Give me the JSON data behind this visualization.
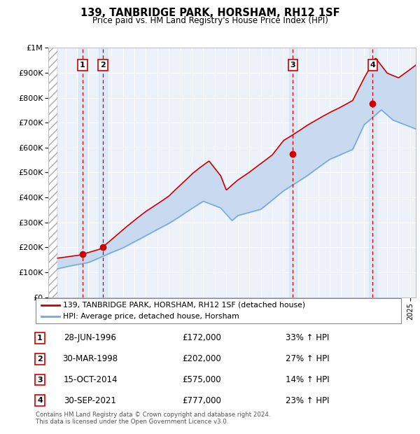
{
  "title": "139, TANBRIDGE PARK, HORSHAM, RH12 1SF",
  "subtitle": "Price paid vs. HM Land Registry's House Price Index (HPI)",
  "legend_line1": "139, TANBRIDGE PARK, HORSHAM, RH12 1SF (detached house)",
  "legend_line2": "HPI: Average price, detached house, Horsham",
  "footer1": "Contains HM Land Registry data © Crown copyright and database right 2024.",
  "footer2": "This data is licensed under the Open Government Licence v3.0.",
  "sales": [
    {
      "num": 1,
      "year": 1996.49,
      "price": 172000,
      "label": "28-JUN-1996",
      "pct": "33%",
      "dir": "↑"
    },
    {
      "num": 2,
      "year": 1998.25,
      "price": 202000,
      "label": "30-MAR-1998",
      "pct": "27%",
      "dir": "↑"
    },
    {
      "num": 3,
      "year": 2014.79,
      "price": 575000,
      "label": "15-OCT-2014",
      "pct": "14%",
      "dir": "↑"
    },
    {
      "num": 4,
      "year": 2021.75,
      "price": 777000,
      "label": "30-SEP-2021",
      "pct": "23%",
      "dir": "↑"
    }
  ],
  "ylim": [
    0,
    1000000
  ],
  "xlim": [
    1993.5,
    2025.5
  ],
  "hatch_end": 1994.3,
  "price_line_color": "#cc0000",
  "hpi_line_color": "#7aaadd",
  "fill_color": "#c8daf0",
  "marker_color": "#cc0000",
  "box_color": "#cc0000",
  "dashed_color": "#cc0000",
  "background_color": "#ffffff",
  "plot_bg_color": "#edf2fa"
}
